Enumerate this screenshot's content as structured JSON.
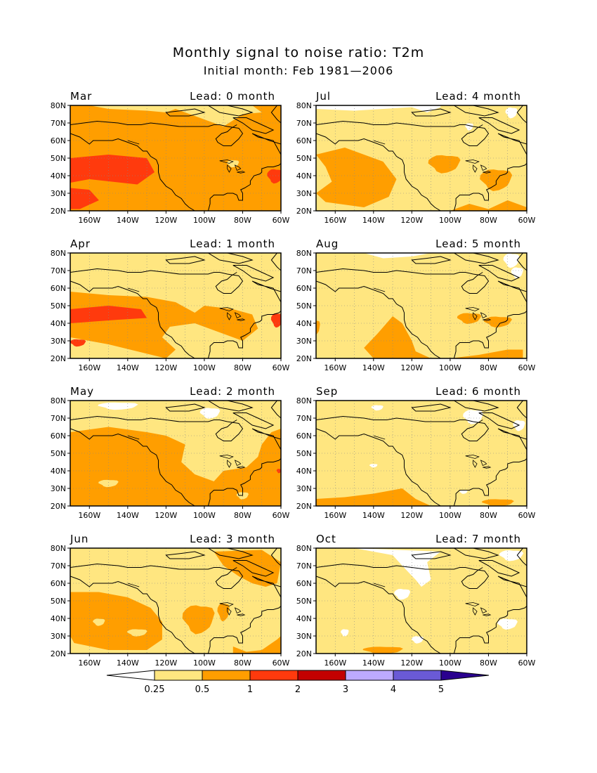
{
  "title": "Monthly signal to noise ratio: T2m",
  "subtitle": "Initial month: Feb 1981—2006",
  "lat_labels": [
    "80N",
    "70N",
    "60N",
    "50N",
    "40N",
    "30N",
    "20N"
  ],
  "lon_labels": [
    "160W",
    "140W",
    "120W",
    "100W",
    "80W",
    "60W"
  ],
  "panels": [
    {
      "month": "Mar",
      "lead": "Lead: 0 month"
    },
    {
      "month": "Jul",
      "lead": "Lead: 4 month"
    },
    {
      "month": "Apr",
      "lead": "Lead: 1 month"
    },
    {
      "month": "Aug",
      "lead": "Lead: 5 month"
    },
    {
      "month": "May",
      "lead": "Lead: 2 month"
    },
    {
      "month": "Sep",
      "lead": "Lead: 6 month"
    },
    {
      "month": "Jun",
      "lead": "Lead: 3 month"
    },
    {
      "month": "Oct",
      "lead": "Lead: 7 month"
    }
  ],
  "colorbar": {
    "labels": [
      "0.25",
      "0.5",
      "1",
      "2",
      "3",
      "4",
      "5"
    ],
    "colors": [
      "#ffffff",
      "#ffe680",
      "#ff9e00",
      "#ff3a0d",
      "#c30000",
      "#bcaaff",
      "#6a5ad6",
      "#2a008f"
    ]
  }
}
